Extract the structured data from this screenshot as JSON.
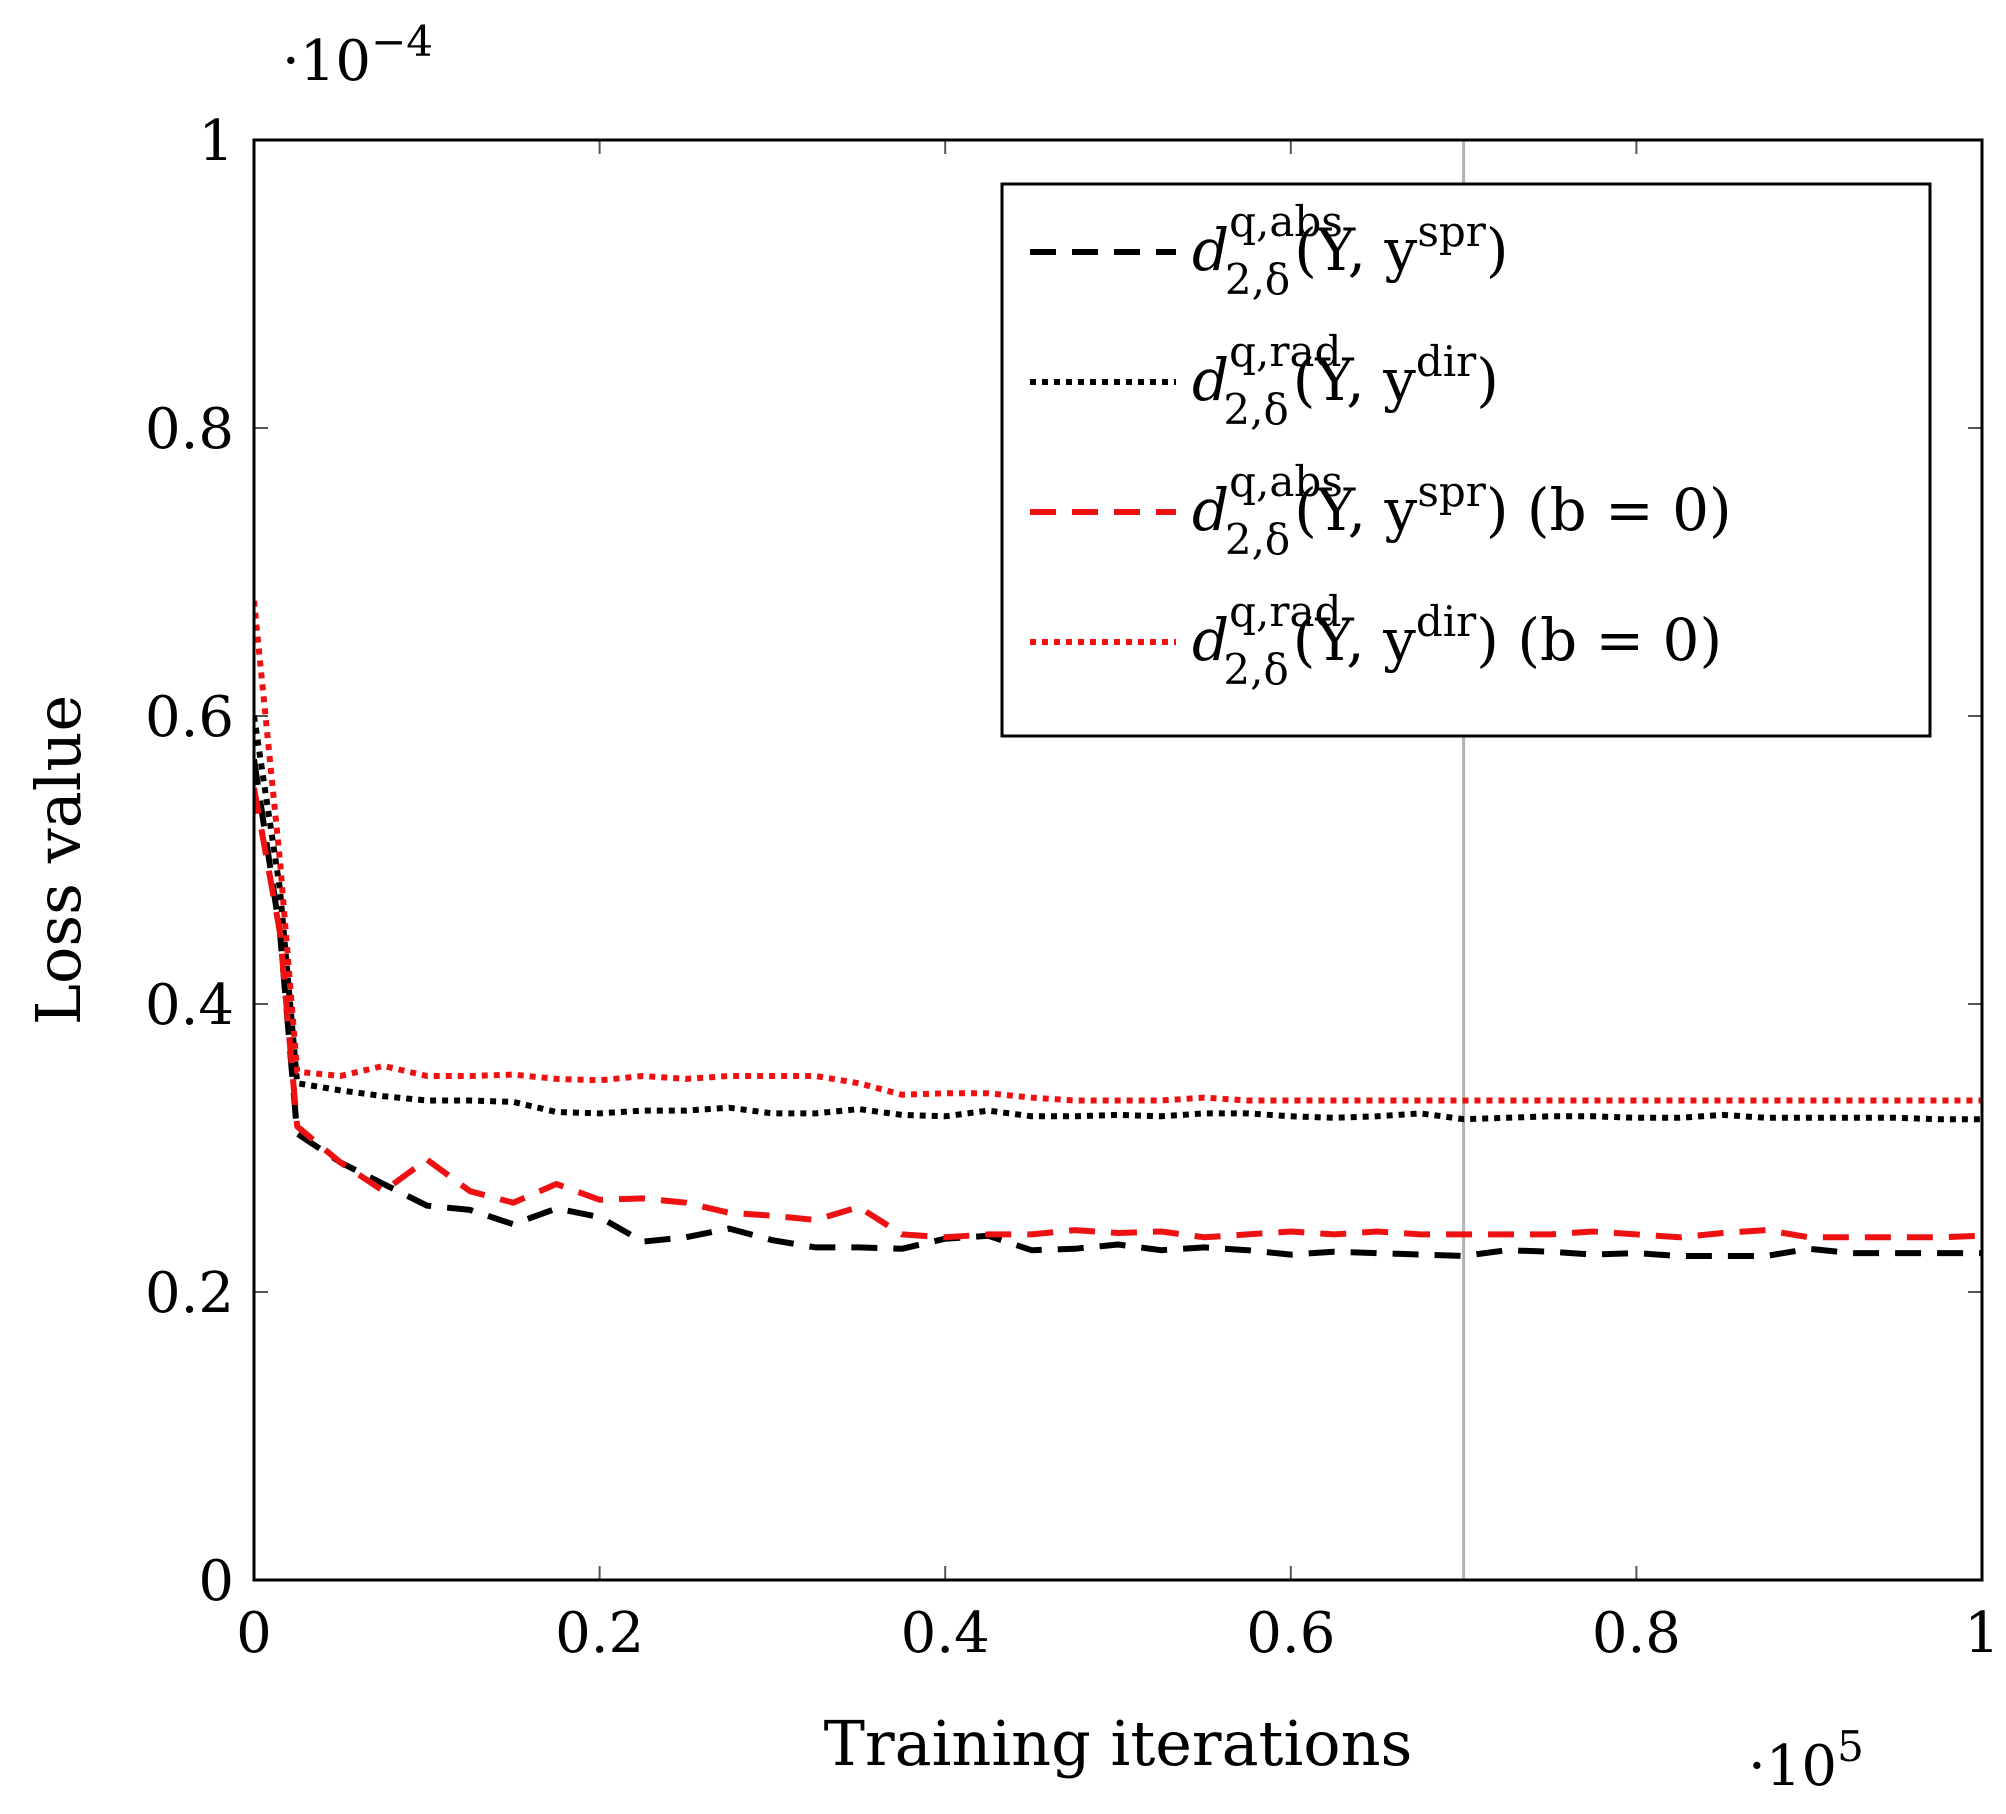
{
  "chart_data": {
    "type": "line",
    "xlabel": "Training iterations",
    "ylabel": "Loss value",
    "x_multiplier": "·10",
    "x_multiplier_exp": "5",
    "y_multiplier": "·10",
    "y_multiplier_exp": "−4",
    "xlim": [
      0,
      1
    ],
    "ylim": [
      0,
      1
    ],
    "xticks": [
      "0",
      "0.2",
      "0.4",
      "0.6",
      "0.8",
      "1"
    ],
    "yticks": [
      "0",
      "0.2",
      "0.4",
      "0.6",
      "0.8",
      "1"
    ],
    "xtick_values": [
      0,
      0.2,
      0.4,
      0.6,
      0.8,
      1
    ],
    "ytick_values": [
      0,
      0.2,
      0.4,
      0.6,
      0.8,
      1
    ],
    "vertical_line_x": 0.7,
    "legend_position": "top-right",
    "series": [
      {
        "d": "d",
        "sup": "q,abs",
        "sub": "2,δ",
        "args": "(Y, y",
        "argsup": "spr",
        "suffix": ")",
        "color": "#000000",
        "style": "dashed",
        "x": [
          0,
          0.015,
          0.025,
          0.05,
          0.075,
          0.1,
          0.125,
          0.15,
          0.175,
          0.2,
          0.225,
          0.25,
          0.275,
          0.3,
          0.325,
          0.35,
          0.375,
          0.4,
          0.425,
          0.45,
          0.475,
          0.5,
          0.525,
          0.55,
          0.575,
          0.6,
          0.625,
          0.65,
          0.675,
          0.7,
          0.725,
          0.75,
          0.775,
          0.8,
          0.825,
          0.85,
          0.875,
          0.9,
          0.925,
          0.95,
          0.975,
          1.0
        ],
        "y": [
          0.57,
          0.45,
          0.31,
          0.29,
          0.275,
          0.26,
          0.257,
          0.247,
          0.258,
          0.252,
          0.235,
          0.238,
          0.244,
          0.236,
          0.231,
          0.231,
          0.23,
          0.237,
          0.239,
          0.229,
          0.23,
          0.233,
          0.229,
          0.231,
          0.229,
          0.226,
          0.228,
          0.227,
          0.226,
          0.225,
          0.229,
          0.228,
          0.226,
          0.227,
          0.225,
          0.225,
          0.225,
          0.23,
          0.227,
          0.227,
          0.227,
          0.227
        ]
      },
      {
        "d": "d",
        "sup": "q,rad",
        "sub": "2,δ",
        "args": "(Y, y",
        "argsup": "dir",
        "suffix": ")",
        "color": "#000000",
        "style": "dotted",
        "x": [
          0,
          0.015,
          0.025,
          0.05,
          0.075,
          0.1,
          0.125,
          0.15,
          0.175,
          0.2,
          0.225,
          0.25,
          0.275,
          0.3,
          0.325,
          0.35,
          0.375,
          0.4,
          0.425,
          0.45,
          0.475,
          0.5,
          0.525,
          0.55,
          0.575,
          0.6,
          0.625,
          0.65,
          0.675,
          0.7,
          0.725,
          0.75,
          0.775,
          0.8,
          0.825,
          0.85,
          0.875,
          0.9,
          0.925,
          0.95,
          0.975,
          1.0
        ],
        "y": [
          0.6,
          0.48,
          0.345,
          0.34,
          0.336,
          0.333,
          0.333,
          0.332,
          0.325,
          0.324,
          0.326,
          0.326,
          0.328,
          0.324,
          0.324,
          0.327,
          0.323,
          0.322,
          0.326,
          0.322,
          0.322,
          0.323,
          0.322,
          0.324,
          0.324,
          0.322,
          0.321,
          0.322,
          0.324,
          0.32,
          0.321,
          0.322,
          0.322,
          0.321,
          0.321,
          0.323,
          0.321,
          0.321,
          0.321,
          0.321,
          0.32,
          0.32
        ]
      },
      {
        "d": "d",
        "sup": "q,abs",
        "sub": "2,δ",
        "args": "(Y, y",
        "argsup": "spr",
        "suffix": ") (b = 0)",
        "color": "#ee1111",
        "style": "dashed",
        "x": [
          0,
          0.015,
          0.025,
          0.05,
          0.075,
          0.1,
          0.125,
          0.15,
          0.175,
          0.2,
          0.225,
          0.25,
          0.275,
          0.3,
          0.325,
          0.35,
          0.375,
          0.4,
          0.425,
          0.45,
          0.475,
          0.5,
          0.525,
          0.55,
          0.575,
          0.6,
          0.625,
          0.65,
          0.675,
          0.7,
          0.725,
          0.75,
          0.775,
          0.8,
          0.825,
          0.85,
          0.875,
          0.9,
          0.925,
          0.95,
          0.975,
          1.0
        ],
        "y": [
          0.55,
          0.45,
          0.315,
          0.29,
          0.27,
          0.292,
          0.27,
          0.262,
          0.275,
          0.264,
          0.265,
          0.262,
          0.255,
          0.253,
          0.25,
          0.259,
          0.24,
          0.238,
          0.24,
          0.24,
          0.243,
          0.241,
          0.242,
          0.238,
          0.24,
          0.242,
          0.24,
          0.242,
          0.24,
          0.24,
          0.24,
          0.24,
          0.242,
          0.24,
          0.238,
          0.241,
          0.243,
          0.238,
          0.238,
          0.238,
          0.238,
          0.239
        ]
      },
      {
        "d": "d",
        "sup": "q,rad",
        "sub": "2,δ",
        "args": "(Y, y",
        "argsup": "dir",
        "suffix": ") (b = 0)",
        "color": "#ee1111",
        "style": "dotted",
        "x": [
          0,
          0.015,
          0.025,
          0.05,
          0.075,
          0.1,
          0.125,
          0.15,
          0.175,
          0.2,
          0.225,
          0.25,
          0.275,
          0.3,
          0.325,
          0.35,
          0.375,
          0.4,
          0.425,
          0.45,
          0.475,
          0.5,
          0.525,
          0.55,
          0.575,
          0.6,
          0.625,
          0.65,
          0.675,
          0.7,
          0.725,
          0.75,
          0.775,
          0.8,
          0.825,
          0.85,
          0.875,
          0.9,
          0.925,
          0.95,
          0.975,
          1.0
        ],
        "y": [
          0.68,
          0.5,
          0.353,
          0.35,
          0.357,
          0.35,
          0.35,
          0.351,
          0.348,
          0.347,
          0.35,
          0.348,
          0.35,
          0.35,
          0.35,
          0.345,
          0.337,
          0.338,
          0.338,
          0.335,
          0.333,
          0.333,
          0.333,
          0.335,
          0.333,
          0.333,
          0.333,
          0.333,
          0.333,
          0.333,
          0.333,
          0.333,
          0.333,
          0.333,
          0.333,
          0.333,
          0.333,
          0.333,
          0.333,
          0.333,
          0.333,
          0.333
        ]
      }
    ]
  }
}
